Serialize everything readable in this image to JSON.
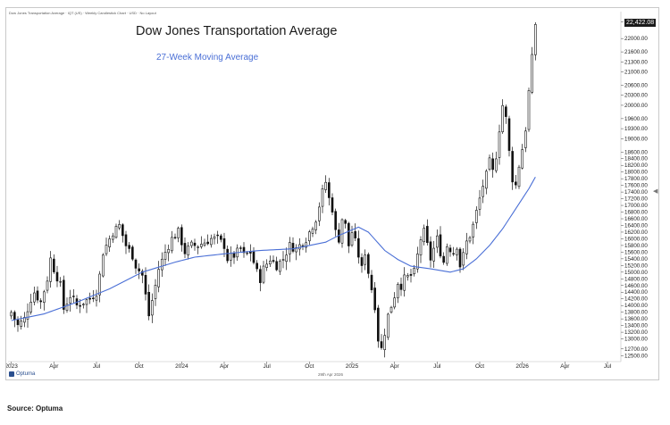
{
  "header": {
    "subtitle": "Dow Jones Transportation Average · IQT (US) · Weekly Candlestick Chart · USD · No Layout"
  },
  "badge": {
    "last_price": "22,422.08"
  },
  "footer": {
    "date_label": "29th Apr 2026",
    "brand": "Optuma",
    "source": "Source: Optuma"
  },
  "colors": {
    "candle": "#111111",
    "moving_average": "#4a6fd6",
    "grid": "#ededed"
  },
  "chart_data": {
    "type": "candlestick",
    "title": "Dow Jones Transportation Average",
    "series": [
      {
        "name": "27-Week Moving Average",
        "type": "line"
      }
    ],
    "ylim": [
      12400,
      22700
    ],
    "y_ticks": [
      12500,
      12700,
      13000,
      13200,
      13400,
      13600,
      13800,
      14000,
      14200,
      14400,
      14600,
      14800,
      15000,
      15200,
      15400,
      15600,
      15800,
      16000,
      16200,
      16400,
      16600,
      16800,
      17000,
      17200,
      17400,
      17600,
      17800,
      18000,
      18200,
      18400,
      18600,
      19000,
      19300,
      19600,
      20000,
      20300,
      20600,
      21000,
      21300,
      21600,
      22000,
      22500
    ],
    "x_labels": [
      "2023",
      "Apr",
      "Jul",
      "Oct",
      "2024",
      "Apr",
      "Jul",
      "Oct",
      "2025",
      "Apr",
      "Jul",
      "Oct",
      "2026",
      "Apr",
      "Jul"
    ],
    "x_label_weeks": [
      0,
      13,
      26,
      39,
      52,
      65,
      78,
      91,
      104,
      117,
      130,
      143,
      156,
      169,
      182
    ],
    "close_anchors": [
      [
        0,
        13800
      ],
      [
        2,
        13400
      ],
      [
        4,
        13600
      ],
      [
        6,
        14200
      ],
      [
        7,
        14400
      ],
      [
        9,
        14100
      ],
      [
        11,
        14800
      ],
      [
        12,
        15400
      ],
      [
        13,
        15100
      ],
      [
        15,
        14600
      ],
      [
        16,
        13900
      ],
      [
        18,
        14300
      ],
      [
        20,
        14000
      ],
      [
        22,
        14100
      ],
      [
        24,
        14200
      ],
      [
        26,
        14400
      ],
      [
        27,
        14900
      ],
      [
        28,
        15600
      ],
      [
        30,
        16000
      ],
      [
        31,
        16200
      ],
      [
        33,
        16400
      ],
      [
        34,
        16100
      ],
      [
        35,
        15800
      ],
      [
        37,
        15500
      ],
      [
        38,
        15200
      ],
      [
        40,
        14900
      ],
      [
        41,
        14300
      ],
      [
        42,
        13700
      ],
      [
        44,
        14600
      ],
      [
        45,
        15100
      ],
      [
        47,
        15600
      ],
      [
        49,
        16000
      ],
      [
        51,
        16200
      ],
      [
        52,
        15900
      ],
      [
        53,
        15600
      ],
      [
        55,
        15800
      ],
      [
        57,
        15800
      ],
      [
        59,
        15900
      ],
      [
        61,
        16000
      ],
      [
        63,
        16000
      ],
      [
        65,
        15800
      ],
      [
        66,
        15400
      ],
      [
        68,
        15500
      ],
      [
        70,
        15700
      ],
      [
        71,
        15500
      ],
      [
        73,
        15600
      ],
      [
        75,
        15000
      ],
      [
        76,
        14800
      ],
      [
        77,
        15100
      ],
      [
        79,
        15400
      ],
      [
        81,
        15200
      ],
      [
        83,
        15400
      ],
      [
        85,
        15800
      ],
      [
        87,
        15700
      ],
      [
        88,
        15800
      ],
      [
        90,
        16000
      ],
      [
        92,
        16400
      ],
      [
        93,
        16600
      ],
      [
        94,
        17000
      ],
      [
        95,
        17400
      ],
      [
        96,
        17700
      ],
      [
        97,
        17200
      ],
      [
        98,
        16900
      ],
      [
        99,
        16200
      ],
      [
        100,
        16000
      ],
      [
        101,
        16600
      ],
      [
        102,
        16400
      ],
      [
        103,
        15800
      ],
      [
        104,
        16200
      ],
      [
        105,
        15900
      ],
      [
        106,
        15500
      ],
      [
        107,
        15100
      ],
      [
        108,
        15600
      ],
      [
        109,
        15000
      ],
      [
        110,
        14500
      ],
      [
        111,
        14000
      ],
      [
        112,
        13000
      ],
      [
        113,
        12700
      ],
      [
        114,
        13200
      ],
      [
        115,
        13700
      ],
      [
        116,
        14000
      ],
      [
        117,
        14300
      ],
      [
        118,
        14700
      ],
      [
        119,
        14600
      ],
      [
        120,
        14800
      ],
      [
        122,
        14900
      ],
      [
        123,
        15000
      ],
      [
        124,
        15500
      ],
      [
        125,
        16000
      ],
      [
        126,
        16200
      ],
      [
        127,
        15800
      ],
      [
        128,
        15400
      ],
      [
        129,
        15700
      ],
      [
        130,
        16000
      ],
      [
        131,
        15600
      ],
      [
        132,
        15300
      ],
      [
        133,
        15800
      ],
      [
        134,
        15700
      ],
      [
        135,
        15600
      ],
      [
        136,
        15800
      ],
      [
        137,
        15200
      ],
      [
        138,
        15500
      ],
      [
        139,
        15900
      ],
      [
        140,
        16100
      ],
      [
        141,
        16400
      ],
      [
        142,
        16800
      ],
      [
        143,
        17200
      ],
      [
        144,
        17600
      ],
      [
        145,
        17900
      ],
      [
        146,
        18300
      ],
      [
        147,
        18000
      ],
      [
        148,
        18500
      ],
      [
        149,
        19300
      ],
      [
        150,
        20000
      ],
      [
        151,
        19600
      ],
      [
        152,
        18600
      ],
      [
        153,
        17800
      ],
      [
        154,
        17600
      ],
      [
        155,
        18200
      ],
      [
        156,
        18700
      ],
      [
        157,
        19300
      ],
      [
        158,
        20400
      ],
      [
        159,
        21400
      ],
      [
        160,
        22422
      ]
    ],
    "ma_anchors": [
      [
        0,
        13550
      ],
      [
        10,
        13750
      ],
      [
        20,
        14100
      ],
      [
        30,
        14500
      ],
      [
        40,
        15000
      ],
      [
        50,
        15300
      ],
      [
        56,
        15450
      ],
      [
        66,
        15560
      ],
      [
        76,
        15650
      ],
      [
        86,
        15700
      ],
      [
        96,
        15900
      ],
      [
        100,
        16100
      ],
      [
        106,
        16350
      ],
      [
        109,
        16200
      ],
      [
        114,
        15650
      ],
      [
        118,
        15380
      ],
      [
        122,
        15180
      ],
      [
        128,
        15100
      ],
      [
        134,
        15000
      ],
      [
        138,
        15100
      ],
      [
        142,
        15400
      ],
      [
        146,
        15800
      ],
      [
        150,
        16300
      ],
      [
        154,
        16900
      ],
      [
        158,
        17500
      ],
      [
        160,
        17850
      ]
    ]
  }
}
